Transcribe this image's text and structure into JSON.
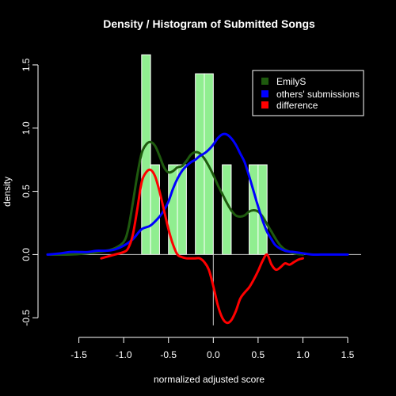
{
  "chart_data": {
    "type": "histogram+density",
    "title": "Density / Histogram of Submitted Songs",
    "xlabel": "normalized adjusted score",
    "ylabel": "density",
    "xlim": [
      -1.85,
      1.65
    ],
    "ylim": [
      -0.58,
      1.65
    ],
    "x_ticks": [
      -1.5,
      -1.0,
      -0.5,
      0.0,
      0.5,
      1.0,
      1.5
    ],
    "x_tick_labels": [
      "-1.5",
      "-1.0",
      "-0.5",
      "0.0",
      "0.5",
      "1.0",
      "1.5"
    ],
    "y_ticks": [
      -0.5,
      0.0,
      0.5,
      1.0,
      1.5
    ],
    "y_tick_labels": [
      "-0.5",
      "0.0",
      "0.5",
      "1.0",
      "1.5"
    ],
    "histogram": {
      "color": "#90EE90",
      "bin_width": 0.1,
      "bins": [
        {
          "left": -0.8,
          "right": -0.7,
          "density": 1.58
        },
        {
          "left": -0.7,
          "right": -0.6,
          "density": 0.71
        },
        {
          "left": -0.5,
          "right": -0.4,
          "density": 0.71
        },
        {
          "left": -0.4,
          "right": -0.3,
          "density": 0.71
        },
        {
          "left": -0.2,
          "right": -0.1,
          "density": 1.43
        },
        {
          "left": -0.1,
          "right": 0.0,
          "density": 1.43
        },
        {
          "left": 0.1,
          "right": 0.2,
          "density": 0.71
        },
        {
          "left": 0.4,
          "right": 0.5,
          "density": 0.71
        },
        {
          "left": 0.5,
          "right": 0.6,
          "density": 0.71
        }
      ]
    },
    "series": [
      {
        "name": "EmilyS",
        "color": "#1e5a0e",
        "x": [
          -1.85,
          -1.6,
          -1.4,
          -1.2,
          -1.1,
          -1.0,
          -0.95,
          -0.9,
          -0.85,
          -0.8,
          -0.75,
          -0.7,
          -0.65,
          -0.6,
          -0.55,
          -0.5,
          -0.45,
          -0.4,
          -0.35,
          -0.3,
          -0.25,
          -0.2,
          -0.15,
          -0.1,
          -0.05,
          0.0,
          0.05,
          0.1,
          0.15,
          0.2,
          0.25,
          0.3,
          0.35,
          0.4,
          0.45,
          0.5,
          0.55,
          0.6,
          0.65,
          0.7,
          0.75,
          0.8,
          0.9,
          1.0
        ],
        "y": [
          0.0,
          0.0,
          0.01,
          0.03,
          0.05,
          0.1,
          0.2,
          0.4,
          0.62,
          0.8,
          0.87,
          0.89,
          0.86,
          0.78,
          0.69,
          0.65,
          0.66,
          0.69,
          0.7,
          0.74,
          0.79,
          0.81,
          0.8,
          0.76,
          0.7,
          0.63,
          0.55,
          0.48,
          0.41,
          0.35,
          0.31,
          0.3,
          0.31,
          0.34,
          0.35,
          0.34,
          0.3,
          0.24,
          0.18,
          0.12,
          0.07,
          0.04,
          0.01,
          0.0
        ]
      },
      {
        "name": "others' submissions",
        "color": "#0000ff",
        "x": [
          -1.85,
          -1.7,
          -1.6,
          -1.5,
          -1.4,
          -1.3,
          -1.2,
          -1.1,
          -1.0,
          -0.9,
          -0.8,
          -0.7,
          -0.6,
          -0.55,
          -0.5,
          -0.45,
          -0.4,
          -0.35,
          -0.3,
          -0.25,
          -0.2,
          -0.15,
          -0.1,
          -0.05,
          0.0,
          0.05,
          0.1,
          0.15,
          0.2,
          0.25,
          0.3,
          0.35,
          0.4,
          0.45,
          0.5,
          0.55,
          0.6,
          0.65,
          0.7,
          0.8,
          0.9,
          1.0,
          1.1,
          1.2,
          1.3,
          1.4,
          1.5
        ],
        "y": [
          0.0,
          0.01,
          0.02,
          0.02,
          0.02,
          0.03,
          0.03,
          0.04,
          0.07,
          0.12,
          0.2,
          0.23,
          0.3,
          0.35,
          0.42,
          0.52,
          0.6,
          0.66,
          0.7,
          0.73,
          0.75,
          0.78,
          0.8,
          0.83,
          0.87,
          0.92,
          0.95,
          0.95,
          0.92,
          0.87,
          0.8,
          0.73,
          0.62,
          0.5,
          0.38,
          0.27,
          0.18,
          0.12,
          0.07,
          0.03,
          0.02,
          0.01,
          0.0,
          0.0,
          0.0,
          0.0,
          0.0
        ]
      },
      {
        "name": "difference",
        "color": "#ff0000",
        "x": [
          -1.25,
          -1.2,
          -1.1,
          -1.0,
          -0.95,
          -0.9,
          -0.85,
          -0.8,
          -0.75,
          -0.7,
          -0.65,
          -0.6,
          -0.55,
          -0.5,
          -0.45,
          -0.4,
          -0.35,
          -0.3,
          -0.25,
          -0.2,
          -0.15,
          -0.1,
          -0.05,
          0.0,
          0.05,
          0.1,
          0.15,
          0.2,
          0.25,
          0.3,
          0.35,
          0.4,
          0.45,
          0.5,
          0.55,
          0.6,
          0.65,
          0.7,
          0.75,
          0.8,
          0.85,
          0.9,
          0.95,
          1.0
        ],
        "y": [
          -0.03,
          -0.02,
          0.0,
          0.02,
          0.05,
          0.15,
          0.35,
          0.57,
          0.65,
          0.67,
          0.62,
          0.5,
          0.35,
          0.2,
          0.08,
          0.0,
          -0.02,
          -0.03,
          -0.03,
          -0.03,
          -0.03,
          -0.06,
          -0.12,
          -0.25,
          -0.4,
          -0.5,
          -0.54,
          -0.52,
          -0.45,
          -0.35,
          -0.3,
          -0.26,
          -0.2,
          -0.13,
          -0.05,
          0.0,
          -0.08,
          -0.12,
          -0.1,
          -0.07,
          -0.08,
          -0.06,
          -0.04,
          -0.03
        ]
      }
    ],
    "legend": {
      "placement": "top-right",
      "entries": [
        "EmilyS",
        "others' submissions",
        "difference"
      ]
    },
    "reference_lines": {
      "horizontal_y": 0.0,
      "vertical_x": 0.0
    },
    "grid": false
  }
}
